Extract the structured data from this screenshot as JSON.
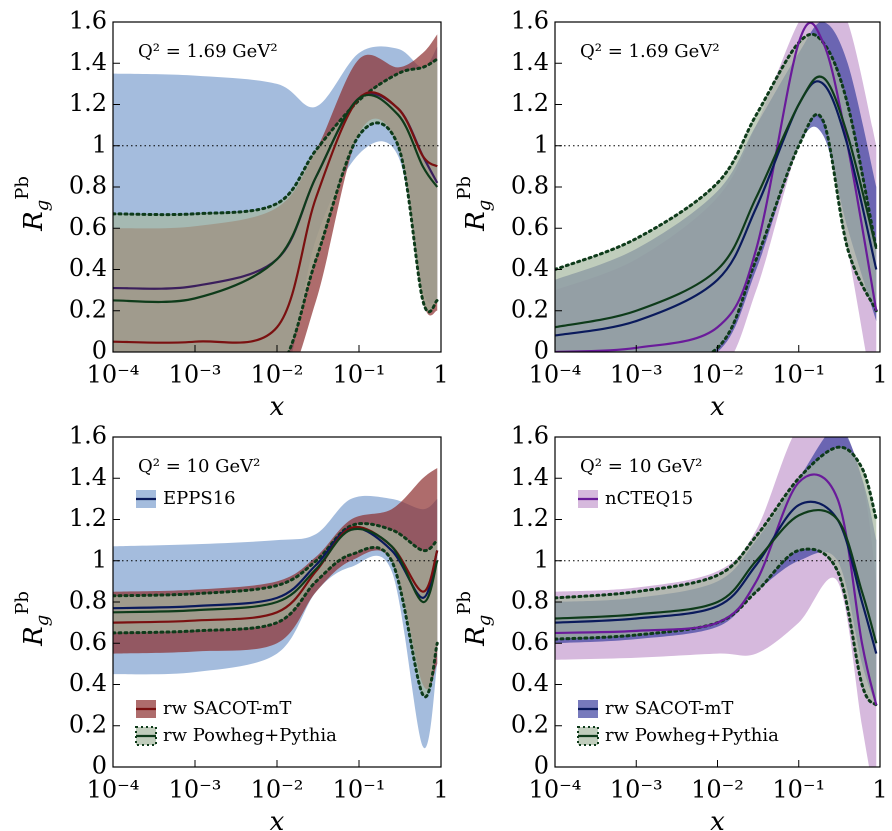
{
  "chart_data": [
    {
      "type": "band-line",
      "annotation": "Q² = 1.69 GeV²",
      "xlabel": "x",
      "ylabel": "R",
      "ylabel_sub": "g",
      "ylabel_sup": "Pb",
      "xscale": "log",
      "xlim": [
        0.0001,
        1
      ],
      "ylim": [
        0,
        1.6
      ],
      "reference_line": 1,
      "xticks": [
        {
          "value": 0.0001,
          "label": "10⁻⁴"
        },
        {
          "value": 0.001,
          "label": "10⁻³"
        },
        {
          "value": 0.01,
          "label": "10⁻²"
        },
        {
          "value": 0.1,
          "label": "10⁻¹"
        },
        1
      ],
      "yticks": [
        0,
        0.2,
        0.4,
        0.6,
        0.8,
        1,
        1.2,
        1.4,
        1.6
      ],
      "x": [
        0.0001,
        0.001,
        0.01,
        0.03,
        0.1,
        0.3,
        0.6,
        0.9
      ],
      "series": [
        {
          "color": "#3b1f5c",
          "band_color": "#7d9fcf",
          "upper": [
            1.35,
            1.34,
            1.3,
            1.19,
            1.45,
            1.47,
            1.38,
            1.48
          ],
          "lower": [
            -0.3,
            -0.3,
            -0.2,
            0.55,
            0.96,
            0.95,
            0.3,
            0.25
          ],
          "values": [
            0.31,
            0.32,
            0.45,
            0.85,
            1.23,
            1.18,
            0.95,
            0.82
          ]
        },
        {
          "color": "#7a1010",
          "band_color": "#8b2e2e",
          "upper": [
            0.6,
            0.61,
            0.7,
            0.98,
            1.42,
            1.38,
            1.45,
            1.54
          ],
          "lower": [
            -0.3,
            -0.3,
            -0.2,
            0.25,
            1.06,
            1.0,
            0.25,
            0.2
          ],
          "values": [
            0.05,
            0.05,
            0.12,
            0.75,
            1.23,
            1.18,
            0.95,
            0.9
          ]
        },
        {
          "color": "#0e3b1a",
          "band_color": "#a5b8a0",
          "edge": "dotted",
          "upper": [
            0.67,
            0.67,
            0.72,
            0.98,
            1.22,
            1.35,
            1.38,
            1.42
          ],
          "lower": [
            -0.3,
            -0.3,
            -0.1,
            0.45,
            1.05,
            1.0,
            0.25,
            0.25
          ],
          "values": [
            0.25,
            0.26,
            0.45,
            0.85,
            1.23,
            1.15,
            0.9,
            0.8
          ]
        }
      ]
    },
    {
      "type": "band-line",
      "annotation": "Q² = 1.69 GeV²",
      "xlabel": "x",
      "ylabel": "R",
      "ylabel_sub": "g",
      "ylabel_sup": "Pb",
      "xscale": "log",
      "xlim": [
        0.0001,
        1
      ],
      "ylim": [
        0,
        1.6
      ],
      "reference_line": 1,
      "xticks": [
        {
          "value": 0.0001,
          "label": "10⁻⁴"
        },
        {
          "value": 0.001,
          "label": "10⁻³"
        },
        {
          "value": 0.01,
          "label": "10⁻²"
        },
        {
          "value": 0.1,
          "label": "10⁻¹"
        },
        1
      ],
      "yticks": [
        0,
        0.2,
        0.4,
        0.6,
        0.8,
        1,
        1.2,
        1.4,
        1.6
      ],
      "x": [
        0.0001,
        0.001,
        0.01,
        0.03,
        0.1,
        0.2,
        0.4,
        0.9
      ],
      "series": [
        {
          "color": "#6a1b9a",
          "band_color": "#c49bcf",
          "upper": [
            0.3,
            0.45,
            0.75,
            1.1,
            1.6,
            1.7,
            1.6,
            1.0
          ],
          "lower": [
            -0.1,
            -0.1,
            -0.1,
            0.3,
            1.0,
            1.1,
            0.5,
            -0.3
          ],
          "values": [
            0.0,
            0.02,
            0.12,
            0.5,
            1.5,
            1.5,
            1.0,
            0.2
          ]
        },
        {
          "color": "#0a1a5c",
          "band_color": "#3d41a0",
          "upper": [
            0.35,
            0.5,
            0.78,
            1.1,
            1.45,
            1.6,
            1.4,
            0.8
          ],
          "lower": [
            -0.1,
            -0.1,
            0.0,
            0.4,
            1.0,
            1.05,
            0.6,
            0.15
          ],
          "values": [
            0.08,
            0.15,
            0.35,
            0.7,
            1.2,
            1.3,
            1.0,
            0.4
          ]
        },
        {
          "color": "#0e3b1a",
          "band_color": "#a5b8a0",
          "edge": "dotted",
          "upper": [
            0.4,
            0.55,
            0.82,
            1.15,
            1.5,
            1.5,
            1.2,
            0.5
          ],
          "lower": [
            -0.1,
            -0.1,
            0.02,
            0.45,
            1.0,
            1.12,
            0.5,
            0.2
          ],
          "values": [
            0.12,
            0.2,
            0.4,
            0.75,
            1.2,
            1.33,
            1.05,
            0.5
          ]
        }
      ]
    },
    {
      "type": "band-line",
      "annotation": "Q² = 10 GeV²",
      "xlabel": "x",
      "ylabel": "R",
      "ylabel_sub": "g",
      "ylabel_sup": "Pb",
      "xscale": "log",
      "xlim": [
        0.0001,
        1
      ],
      "ylim": [
        0,
        1.6
      ],
      "reference_line": 1,
      "xticks": [
        {
          "value": 0.0001,
          "label": "10⁻⁴"
        },
        {
          "value": 0.001,
          "label": "10⁻³"
        },
        {
          "value": 0.01,
          "label": "10⁻²"
        },
        {
          "value": 0.1,
          "label": "10⁻¹"
        },
        1
      ],
      "yticks": [
        0,
        0.2,
        0.4,
        0.6,
        0.8,
        1,
        1.2,
        1.4,
        1.6
      ],
      "x": [
        0.0001,
        0.001,
        0.01,
        0.03,
        0.08,
        0.25,
        0.6,
        0.9
      ],
      "series": [
        {
          "name": "EPPS16",
          "legend": "upper left",
          "color": "#0a1a5c",
          "band_color": "#7d9fcf",
          "upper": [
            1.07,
            1.08,
            1.1,
            1.13,
            1.3,
            1.3,
            1.25,
            1.3
          ],
          "lower": [
            0.45,
            0.46,
            0.55,
            0.85,
            0.97,
            0.95,
            0.1,
            0.5
          ],
          "values": [
            0.77,
            0.78,
            0.82,
            0.98,
            1.16,
            1.05,
            0.82,
            1.05
          ]
        },
        {
          "name": "rw SACOT-mT",
          "legend": "lower left",
          "color": "#7a1010",
          "band_color": "#8b2e2e",
          "upper": [
            0.85,
            0.86,
            0.9,
            1.02,
            1.2,
            1.25,
            1.4,
            1.45
          ],
          "lower": [
            0.55,
            0.56,
            0.6,
            0.85,
            1.0,
            1.0,
            0.4,
            0.5
          ],
          "values": [
            0.7,
            0.71,
            0.75,
            0.95,
            1.16,
            1.07,
            0.85,
            1.05
          ]
        },
        {
          "name": "rw Powheg+Pythia",
          "legend": "lower left",
          "color": "#0e3b1a",
          "band_color": "#a5b8a0",
          "edge": "dotted",
          "upper": [
            0.83,
            0.84,
            0.88,
            1.0,
            1.17,
            1.15,
            1.05,
            1.1
          ],
          "lower": [
            0.65,
            0.66,
            0.7,
            0.9,
            1.03,
            1.0,
            0.35,
            0.6
          ],
          "values": [
            0.75,
            0.76,
            0.8,
            0.96,
            1.15,
            1.07,
            0.8,
            1.0
          ]
        }
      ]
    },
    {
      "type": "band-line",
      "annotation": "Q² = 10 GeV²",
      "xlabel": "x",
      "ylabel": "R",
      "ylabel_sub": "g",
      "ylabel_sup": "Pb",
      "xscale": "log",
      "xlim": [
        0.0001,
        1
      ],
      "ylim": [
        0,
        1.6
      ],
      "reference_line": 1,
      "xticks": [
        {
          "value": 0.0001,
          "label": "10⁻⁴"
        },
        {
          "value": 0.001,
          "label": "10⁻³"
        },
        {
          "value": 0.01,
          "label": "10⁻²"
        },
        {
          "value": 0.1,
          "label": "10⁻¹"
        },
        1
      ],
      "yticks": [
        0,
        0.2,
        0.4,
        0.6,
        0.8,
        1,
        1.2,
        1.4,
        1.6
      ],
      "x": [
        0.0001,
        0.001,
        0.01,
        0.03,
        0.1,
        0.3,
        0.6,
        0.9
      ],
      "series": [
        {
          "name": "nCTEQ15",
          "legend": "upper left",
          "color": "#6a1b9a",
          "band_color": "#c49bcf",
          "upper": [
            0.85,
            0.87,
            0.95,
            1.15,
            1.65,
            1.65,
            1.4,
            0.9
          ],
          "lower": [
            0.52,
            0.53,
            0.55,
            0.55,
            0.7,
            0.9,
            0.2,
            -0.2
          ],
          "values": [
            0.65,
            0.66,
            0.7,
            0.9,
            1.38,
            1.3,
            0.6,
            0.3
          ]
        },
        {
          "name": "rw SACOT-mT",
          "legend": "lower left",
          "color": "#0a1a5c",
          "band_color": "#3d41a0",
          "upper": [
            0.8,
            0.82,
            0.9,
            1.1,
            1.4,
            1.65,
            1.4,
            1.1
          ],
          "lower": [
            0.6,
            0.62,
            0.68,
            0.85,
            1.0,
            1.0,
            0.5,
            0.3
          ],
          "values": [
            0.7,
            0.72,
            0.78,
            0.98,
            1.27,
            1.2,
            0.8,
            0.55
          ]
        },
        {
          "name": "rw Powheg+Pythia",
          "legend": "lower left",
          "color": "#0e3b1a",
          "band_color": "#a5b8a0",
          "edge": "dotted",
          "upper": [
            0.82,
            0.85,
            0.93,
            1.12,
            1.4,
            1.55,
            1.45,
            1.2
          ],
          "lower": [
            0.62,
            0.64,
            0.7,
            0.85,
            1.05,
            0.95,
            0.4,
            0.3
          ],
          "values": [
            0.72,
            0.74,
            0.8,
            1.0,
            1.22,
            1.2,
            0.85,
            0.6
          ]
        }
      ]
    }
  ]
}
